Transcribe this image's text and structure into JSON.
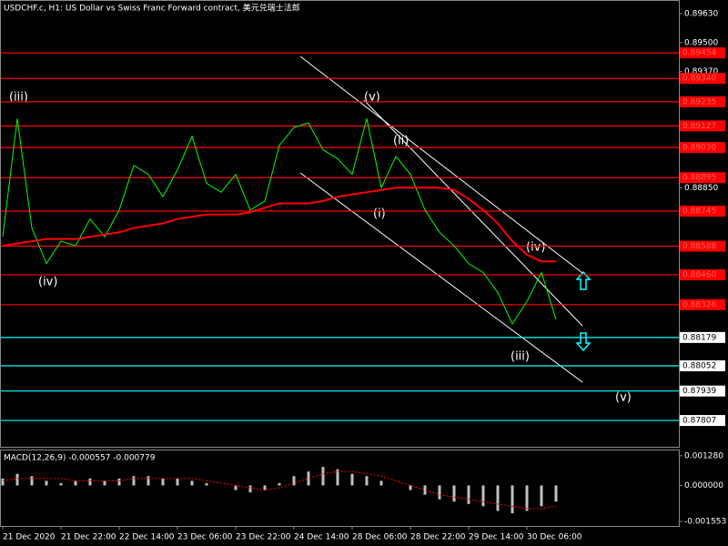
{
  "chart_data": [
    {
      "type": "line",
      "title": "USDCHF.c, H1: US Dollar vs Swiss Franc Forward contract, 美元兑瑞士法郎",
      "categories": [
        "21 Dec 2020",
        null,
        null,
        null,
        "21 Dec 22:00",
        null,
        null,
        null,
        "22 Dec 14:00",
        null,
        null,
        null,
        "23 Dec 06:00",
        null,
        null,
        null,
        "23 Dec 22:00",
        null,
        null,
        null,
        "24 Dec 14:00",
        null,
        null,
        null,
        "28 Dec 06:00",
        null,
        null,
        null,
        "28 Dec 22:00",
        null,
        null,
        null,
        "29 Dec 14:00",
        null,
        null,
        null,
        "30 Dec 06:00",
        null,
        null
      ],
      "series": [
        {
          "color": "#00ff00",
          "values": [
            0.8863,
            0.8916,
            0.8867,
            0.8851,
            0.8861,
            0.8859,
            0.8871,
            0.8863,
            0.8875,
            0.8895,
            0.8891,
            0.8881,
            0.8893,
            0.8908,
            0.8887,
            0.8883,
            0.8891,
            0.8875,
            0.8879,
            0.8904,
            0.8912,
            0.8914,
            0.8902,
            0.8898,
            0.8891,
            0.8916,
            0.8885,
            0.8899,
            0.8891,
            0.8875,
            0.8865,
            0.8859,
            0.8851,
            0.8847,
            0.8838,
            0.8824,
            0.8834,
            0.8847,
            0.8826
          ]
        },
        {
          "color": "#ff0000",
          "values": [
            0.8859,
            0.886,
            0.8861,
            0.8862,
            0.8862,
            0.8862,
            0.8863,
            0.8864,
            0.8865,
            0.8867,
            0.8868,
            0.8869,
            0.8871,
            0.8872,
            0.8873,
            0.8873,
            0.8873,
            0.8874,
            0.8876,
            0.8878,
            0.8878,
            0.8878,
            0.8879,
            0.8881,
            0.8882,
            0.8883,
            0.8884,
            0.8885,
            0.8885,
            0.8885,
            0.8885,
            0.8884,
            0.888,
            0.8875,
            0.8869,
            0.8861,
            0.8855,
            0.8852,
            0.8852
          ]
        }
      ],
      "ylim": [
        0.87685,
        0.89687
      ],
      "yticks": [
        {
          "value": 0.8963,
          "label": "0.89630"
        },
        {
          "value": 0.895,
          "label": "0.89500"
        },
        {
          "value": 0.8937,
          "label": "0.89370"
        },
        {
          "value": 0.8885,
          "label": "0.88850"
        }
      ],
      "hlines": {
        "values": [
          0.89454,
          0.8934,
          0.89235,
          0.89127,
          0.8903,
          0.88895,
          0.88745,
          0.88588,
          0.8846,
          0.88326,
          0.88179,
          0.88052,
          0.87939,
          0.87807
        ],
        "value_labels": [
          "0.89454",
          "0.89340",
          "0.89235",
          "0.89127",
          "0.89030",
          "0.88895",
          "0.88745",
          "0.88588",
          "0.88460",
          "0.88326",
          "0.88179",
          "0.88052",
          "0.87939",
          "0.87807"
        ],
        "colors": [
          "#ff0000",
          "#ff0000",
          "#ff0000",
          "#ff0000",
          "#ff0000",
          "#ff0000",
          "#ff0000",
          "#ff0000",
          "#ff0000",
          "#ff0000",
          "#00ffff",
          "#00ffff",
          "#00ffff",
          "#00ffff"
        ]
      },
      "annotations": [
        "(iii)",
        "(iv)",
        "(v)",
        "(ii)",
        "(i)",
        "(iv)",
        "(iii)",
        "(v)"
      ]
    },
    {
      "type": "bar",
      "title": "MACD(12,26,9) -0.000557 -0.000779",
      "color": "#c0c0c0",
      "values": [
        0.0003,
        0.0005,
        0.0004,
        0.0002,
        0.0001,
        0.0002,
        0.0003,
        0.0002,
        0.0003,
        0.0004,
        0.0004,
        0.0003,
        0.0003,
        0.0002,
        0.0001,
        0.0,
        -0.0002,
        -0.0003,
        -0.0002,
        0.0001,
        0.0004,
        0.0006,
        0.0008,
        0.0007,
        0.0005,
        0.0004,
        0.0002,
        0.0,
        -0.0002,
        -0.0004,
        -0.0006,
        -0.0007,
        -0.0008,
        -0.0009,
        -0.0011,
        -0.0012,
        -0.0011,
        -0.0009,
        -0.0007
      ],
      "signal": {
        "color": "#ff0000",
        "values": [
          0.0002,
          0.0003,
          0.0003,
          0.0003,
          0.0003,
          0.0002,
          0.0002,
          0.0002,
          0.0002,
          0.0003,
          0.0003,
          0.0003,
          0.0003,
          0.0003,
          0.0002,
          0.0001,
          0.0,
          -0.0001,
          -0.0002,
          -0.0001,
          0.0001,
          0.0003,
          0.0005,
          0.0006,
          0.0006,
          0.0005,
          0.0004,
          0.0002,
          0.0,
          -0.0002,
          -0.0004,
          -0.0005,
          -0.0006,
          -0.0007,
          -0.0008,
          -0.0009,
          -0.001,
          -0.001,
          -0.0009
        ]
      },
      "ylim": [
        -0.00175,
        0.00151
      ],
      "yticks": [
        {
          "value": 0.00128,
          "label": "0.001280"
        },
        {
          "value": 0,
          "label": "0.000000"
        },
        {
          "value": -0.001553,
          "label": "-0.001553"
        }
      ]
    }
  ]
}
